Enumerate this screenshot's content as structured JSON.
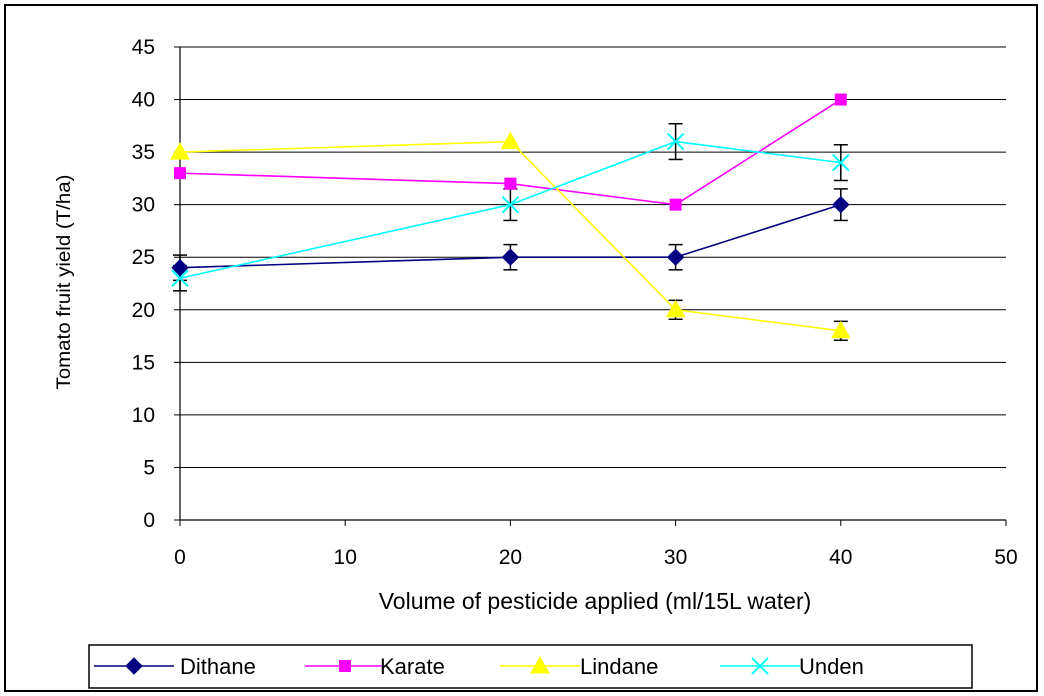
{
  "chart_data": {
    "type": "line",
    "xlabel": "Volume of pesticide applied (ml/15L water)",
    "ylabel": "Tomato fruit yield (T/ha)",
    "xlim": [
      0,
      50
    ],
    "ylim": [
      0,
      45
    ],
    "x_ticks": [
      "0",
      "10",
      "20",
      "30",
      "40",
      "50"
    ],
    "y_ticks": [
      "0",
      "5",
      "10",
      "15",
      "20",
      "25",
      "30",
      "35",
      "40",
      "45"
    ],
    "x": [
      0,
      20,
      30,
      40
    ],
    "grid": true,
    "legend_position": "bottom",
    "series": [
      {
        "name": "Dithane",
        "color": "#000080",
        "marker": "diamond",
        "values": [
          24,
          25,
          25,
          30
        ],
        "error": [
          1.2,
          1.2,
          1.2,
          1.5
        ]
      },
      {
        "name": "Karate",
        "color": "#ff00ff",
        "marker": "square",
        "values": [
          33,
          32,
          30,
          40
        ],
        "error": [
          0,
          0,
          0,
          0
        ]
      },
      {
        "name": "Lindane",
        "color": "#ffff00",
        "marker": "triangle",
        "values": [
          35,
          36,
          20,
          18
        ],
        "error": [
          0,
          0,
          0.9,
          0.9
        ]
      },
      {
        "name": "Unden",
        "color": "#00ffff",
        "marker": "x",
        "values": [
          23,
          30,
          36,
          34
        ],
        "error": [
          1.2,
          1.5,
          1.7,
          1.7
        ]
      }
    ]
  }
}
